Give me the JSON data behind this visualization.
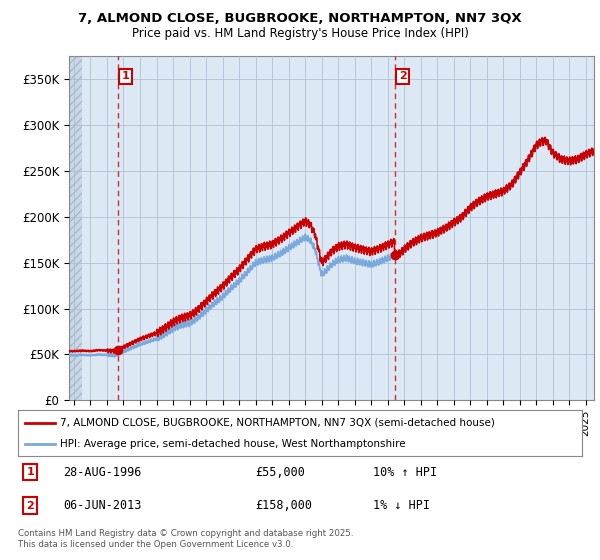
{
  "title": "7, ALMOND CLOSE, BUGBROOKE, NORTHAMPTON, NN7 3QX",
  "subtitle": "Price paid vs. HM Land Registry's House Price Index (HPI)",
  "hpi_label": "HPI: Average price, semi-detached house, West Northamptonshire",
  "price_label": "7, ALMOND CLOSE, BUGBROOKE, NORTHAMPTON, NN7 3QX (semi-detached house)",
  "sale1_date": "28-AUG-1996",
  "sale1_price": 55000,
  "sale1_hpi": "10% ↑ HPI",
  "sale2_date": "06-JUN-2013",
  "sale2_price": 158000,
  "sale2_hpi": "1% ↓ HPI",
  "ylim": [
    0,
    375000
  ],
  "xlim_start": 1993.7,
  "xlim_end": 2025.5,
  "yticks": [
    0,
    50000,
    100000,
    150000,
    200000,
    250000,
    300000,
    350000
  ],
  "ytick_labels": [
    "£0",
    "£50K",
    "£100K",
    "£150K",
    "£200K",
    "£250K",
    "£300K",
    "£350K"
  ],
  "price_color": "#cc0000",
  "hpi_color": "#7aaadd",
  "chart_bg": "#dde8f5",
  "grid_color": "#aabbcc",
  "vline_color": "#cc0000",
  "background_color": "#ffffff",
  "sale1_x": 1996.65,
  "sale2_x": 2013.43,
  "copyright_text": "Contains HM Land Registry data © Crown copyright and database right 2025.\nThis data is licensed under the Open Government Licence v3.0.",
  "hatch_end": 1994.5
}
